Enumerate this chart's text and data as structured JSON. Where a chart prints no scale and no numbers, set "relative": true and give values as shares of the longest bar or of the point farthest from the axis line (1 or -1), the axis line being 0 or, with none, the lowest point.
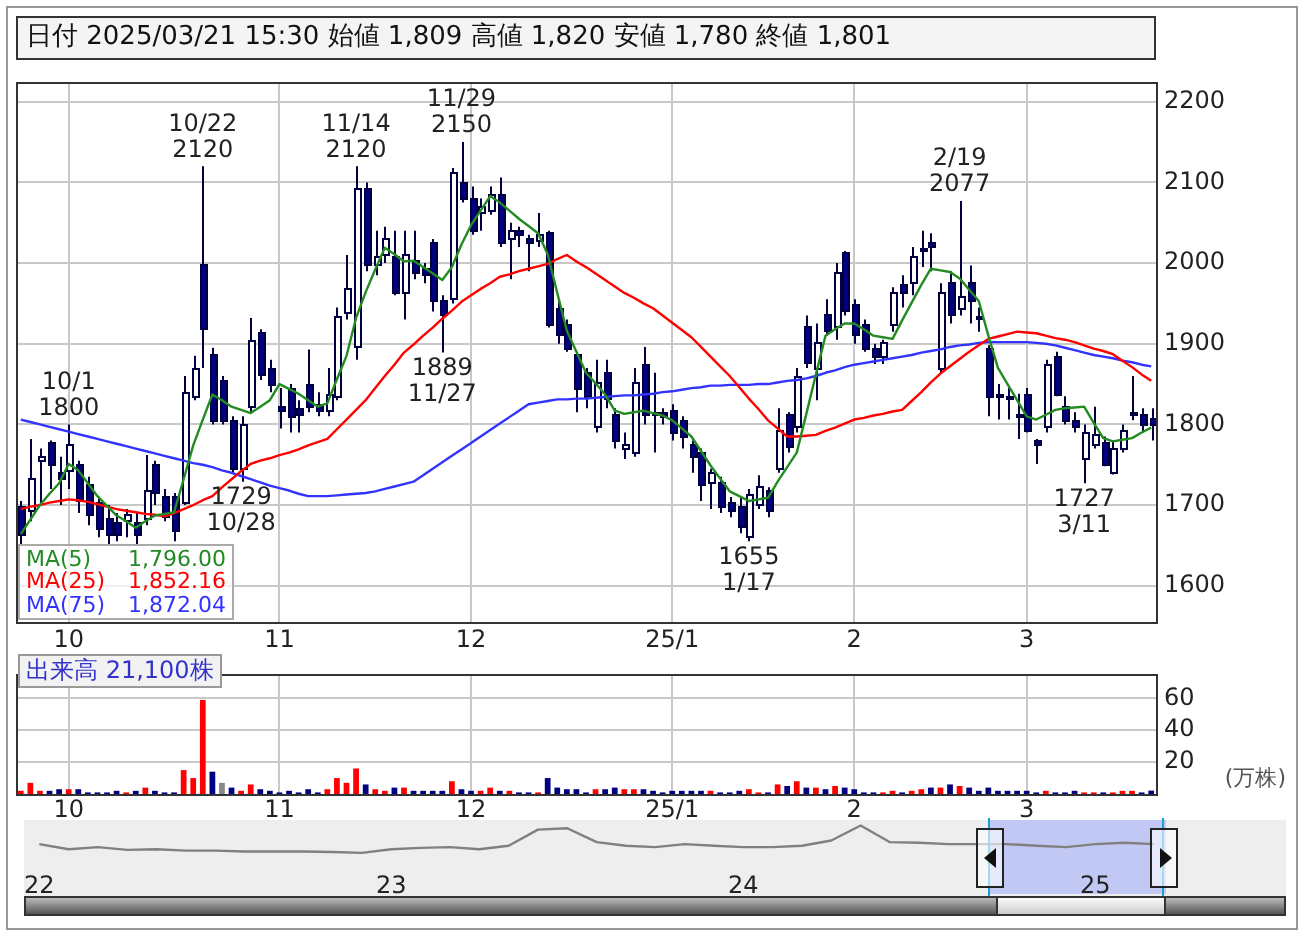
{
  "chart_data": [
    {
      "type": "candlestick",
      "title": "日付 2025/03/21 15:30 始値 1,809 高値 1,820 安値 1,780 終値 1,801",
      "categories": [
        null,
        null,
        null,
        null,
        null,
        "10",
        null,
        null,
        null,
        null,
        null,
        null,
        null,
        null,
        null,
        null,
        null,
        null,
        null,
        null,
        null,
        null,
        null,
        null,
        null,
        null,
        null,
        "11",
        null,
        null,
        null,
        null,
        null,
        null,
        null,
        null,
        null,
        null,
        null,
        null,
        null,
        null,
        null,
        null,
        null,
        null,
        null,
        "12",
        null,
        null,
        null,
        null,
        null,
        null,
        null,
        null,
        null,
        null,
        null,
        null,
        null,
        null,
        null,
        null,
        null,
        null,
        null,
        null,
        "25/1",
        null,
        null,
        null,
        null,
        null,
        null,
        null,
        null,
        null,
        null,
        null,
        null,
        null,
        null,
        null,
        null,
        null,
        null,
        "2",
        null,
        null,
        null,
        null,
        null,
        null,
        null,
        null,
        null,
        null,
        null,
        null,
        null,
        null,
        null,
        null,
        null,
        "3",
        null,
        null,
        null,
        null,
        null,
        null,
        null,
        null,
        null,
        null,
        null,
        null,
        null
      ],
      "ohlc": [
        [
          1700,
          1705,
          1650,
          1665
        ],
        [
          1694,
          1782,
          1680,
          1733
        ],
        [
          1755,
          1770,
          1700,
          1760
        ],
        [
          1778,
          1780,
          1720,
          1750
        ],
        [
          1740,
          1760,
          1700,
          1733
        ],
        [
          1743,
          1800,
          1720,
          1776
        ],
        [
          1750,
          1755,
          1690,
          1707
        ],
        [
          1727,
          1735,
          1675,
          1690
        ],
        [
          1703,
          1710,
          1660,
          1672
        ],
        [
          1685,
          1700,
          1650,
          1665
        ],
        [
          1680,
          1690,
          1655,
          1664
        ],
        [
          1682,
          1695,
          1660,
          1690
        ],
        [
          1680,
          1690,
          1650,
          1665
        ],
        [
          1685,
          1762,
          1675,
          1719
        ],
        [
          1752,
          1755,
          1700,
          1715
        ],
        [
          1711,
          1720,
          1680,
          1687
        ],
        [
          1711,
          1715,
          1655,
          1668
        ],
        [
          1703,
          1860,
          1700,
          1839
        ],
        [
          1834,
          1885,
          1830,
          1871
        ],
        [
          2000,
          2120,
          1870,
          1920
        ],
        [
          1887,
          1895,
          1800,
          1805
        ],
        [
          1855,
          1860,
          1800,
          1805
        ],
        [
          1805,
          1810,
          1740,
          1745
        ],
        [
          1745,
          1810,
          1729,
          1800
        ],
        [
          1822,
          1932,
          1815,
          1905
        ],
        [
          1914,
          1918,
          1855,
          1863
        ],
        [
          1870,
          1880,
          1840,
          1850
        ],
        [
          1822,
          1845,
          1795,
          1818
        ],
        [
          1845,
          1850,
          1790,
          1810
        ],
        [
          1820,
          1830,
          1790,
          1812
        ],
        [
          1850,
          1893,
          1815,
          1822
        ],
        [
          1825,
          1840,
          1810,
          1818
        ],
        [
          1818,
          1870,
          1810,
          1837
        ],
        [
          1834,
          1945,
          1830,
          1934
        ],
        [
          1940,
          2010,
          1930,
          1968
        ],
        [
          1897,
          2120,
          1880,
          2092
        ],
        [
          2092,
          2100,
          1990,
          2000
        ],
        [
          2000,
          2040,
          1985,
          2010
        ],
        [
          2011,
          2045,
          2000,
          2030
        ],
        [
          2008,
          2040,
          1960,
          1964
        ],
        [
          1963,
          2040,
          1930,
          2011
        ],
        [
          2003,
          2040,
          1980,
          1990
        ],
        [
          1995,
          2000,
          1975,
          1987
        ],
        [
          2025,
          2030,
          1940,
          1955
        ],
        [
          1955,
          1960,
          1889,
          1936
        ],
        [
          1956,
          2118,
          1950,
          2113
        ],
        [
          2100,
          2150,
          2075,
          2081
        ],
        [
          2080,
          2095,
          2035,
          2040
        ],
        [
          2063,
          2080,
          2040,
          2070
        ],
        [
          2067,
          2095,
          2060,
          2086
        ],
        [
          2086,
          2106,
          2020,
          2027
        ],
        [
          2031,
          2050,
          1980,
          2041
        ],
        [
          2041,
          2045,
          2020,
          2036
        ],
        [
          2030,
          2035,
          1990,
          2027
        ],
        [
          2029,
          2062,
          2020,
          2036
        ],
        [
          2039,
          2040,
          1920,
          1924
        ],
        [
          1944,
          1955,
          1900,
          1912
        ],
        [
          1924,
          1930,
          1890,
          1895
        ],
        [
          1888,
          1890,
          1815,
          1844
        ],
        [
          1864,
          1870,
          1820,
          1836
        ],
        [
          1797,
          1880,
          1790,
          1852
        ],
        [
          1864,
          1880,
          1820,
          1833
        ],
        [
          1813,
          1820,
          1770,
          1781
        ],
        [
          1770,
          1790,
          1757,
          1775
        ],
        [
          1765,
          1870,
          1760,
          1852
        ],
        [
          1876,
          1896,
          1800,
          1813
        ],
        [
          1815,
          1864,
          1765,
          1812
        ],
        [
          1815,
          1820,
          1800,
          1810
        ],
        [
          1817,
          1825,
          1780,
          1790
        ],
        [
          1805,
          1810,
          1770,
          1785
        ],
        [
          1775,
          1780,
          1740,
          1762
        ],
        [
          1765,
          1770,
          1705,
          1725
        ],
        [
          1728,
          1745,
          1695,
          1740
        ],
        [
          1729,
          1735,
          1690,
          1698
        ],
        [
          1705,
          1710,
          1685,
          1695
        ],
        [
          1700,
          1710,
          1665,
          1674
        ],
        [
          1661,
          1720,
          1655,
          1713
        ],
        [
          1702,
          1737,
          1695,
          1724
        ],
        [
          1718,
          1722,
          1685,
          1695
        ],
        [
          1745,
          1820,
          1740,
          1793
        ],
        [
          1813,
          1815,
          1765,
          1773
        ],
        [
          1797,
          1870,
          1790,
          1860
        ],
        [
          1921,
          1935,
          1870,
          1878
        ],
        [
          1870,
          1925,
          1830,
          1902
        ],
        [
          1937,
          1955,
          1910,
          1917
        ],
        [
          1921,
          2000,
          1905,
          1989
        ],
        [
          2013,
          2015,
          1935,
          1941
        ],
        [
          1949,
          1955,
          1900,
          1913
        ],
        [
          1925,
          1930,
          1890,
          1894
        ],
        [
          1894,
          1900,
          1875,
          1884
        ],
        [
          1884,
          1905,
          1875,
          1902
        ],
        [
          1925,
          1970,
          1915,
          1965
        ],
        [
          1973,
          1985,
          1945,
          1965
        ],
        [
          1977,
          2020,
          1960,
          2009
        ],
        [
          2015,
          2040,
          1995,
          2019
        ],
        [
          2025,
          2037,
          1990,
          2021
        ],
        [
          1870,
          1975,
          1865,
          1965
        ],
        [
          1977,
          1990,
          1925,
          1937
        ],
        [
          1945,
          2077,
          1935,
          1958
        ],
        [
          1977,
          1997,
          1925,
          1953
        ],
        [
          1935,
          1945,
          1915,
          1932
        ],
        [
          1894,
          1898,
          1810,
          1834
        ],
        [
          1838,
          1850,
          1806,
          1834
        ],
        [
          1836,
          1845,
          1806,
          1833
        ],
        [
          1812,
          1838,
          1782,
          1810
        ],
        [
          1838,
          1845,
          1790,
          1794
        ],
        [
          1780,
          1782,
          1751,
          1776
        ],
        [
          1798,
          1880,
          1790,
          1874
        ],
        [
          1886,
          1890,
          1835,
          1838
        ],
        [
          1822,
          1835,
          1800,
          1806
        ],
        [
          1806,
          1815,
          1790,
          1798
        ],
        [
          1759,
          1800,
          1727,
          1790
        ],
        [
          1776,
          1822,
          1770,
          1787
        ],
        [
          1779,
          1785,
          1748,
          1751
        ],
        [
          1741,
          1780,
          1738,
          1771
        ],
        [
          1771,
          1800,
          1765,
          1794
        ],
        [
          1812,
          1860,
          1805,
          1815
        ],
        [
          1814,
          1820,
          1790,
          1800
        ],
        [
          1809,
          1820,
          1780,
          1801
        ]
      ],
      "colors": [
        "#000080",
        "#ffffff",
        "#ffffff",
        "#000080",
        "#000080",
        "#ffffff",
        "#000080",
        "#000080",
        "#000080",
        "#000080",
        "#000080",
        "#ffffff",
        "#000080",
        "#ffffff",
        "#000080",
        "#000080",
        "#000080",
        "#ffffff",
        "#ffffff",
        "#000080",
        "#000080",
        "#000080",
        "#000080",
        "#ffffff",
        "#ffffff",
        "#000080",
        "#000080",
        "#000080",
        "#000080",
        "#000080",
        "#000080",
        "#000080",
        "#ffffff",
        "#ffffff",
        "#ffffff",
        "#ffffff",
        "#000080",
        "#ffffff",
        "#ffffff",
        "#000080",
        "#ffffff",
        "#000080",
        "#000080",
        "#000080",
        "#000080",
        "#ffffff",
        "#000080",
        "#000080",
        "#ffffff",
        "#ffffff",
        "#000080",
        "#ffffff",
        "#000080",
        "#000080",
        "#ffffff",
        "#000080",
        "#000080",
        "#000080",
        "#000080",
        "#000080",
        "#ffffff",
        "#000080",
        "#000080",
        "#ffffff",
        "#ffffff",
        "#000080",
        "#000080",
        "#000080",
        "#000080",
        "#000080",
        "#000080",
        "#000080",
        "#ffffff",
        "#000080",
        "#000080",
        "#000080",
        "#ffffff",
        "#ffffff",
        "#000080",
        "#ffffff",
        "#000080",
        "#ffffff",
        "#000080",
        "#ffffff",
        "#000080",
        "#ffffff",
        "#000080",
        "#000080",
        "#000080",
        "#000080",
        "#ffffff",
        "#ffffff",
        "#000080",
        "#ffffff",
        "#ffffff",
        "#000080",
        "#ffffff",
        "#000080",
        "#ffffff",
        "#000080",
        "#000080",
        "#000080",
        "#000080",
        "#000080",
        "#000080",
        "#000080",
        "#000080",
        "#ffffff",
        "#000080",
        "#000080",
        "#000080",
        "#ffffff",
        "#ffffff",
        "#000080",
        "#ffffff",
        "#ffffff",
        "#ffffff",
        "#000080",
        "#000080"
      ],
      "series": [
        {
          "name": "MA(5)",
          "type": "line",
          "color": "#228b22",
          "values": [
            1664,
            1682,
            1700,
            1714,
            1727,
            1751,
            1743,
            1727,
            1711,
            1699,
            1687,
            1680,
            1672,
            1680,
            1687,
            1689,
            1691,
            1732,
            1774,
            1806,
            1837,
            1830,
            1822,
            1818,
            1814,
            1822,
            1830,
            1850,
            1844,
            1838,
            1830,
            1822,
            1826,
            1856,
            1885,
            1932,
            1964,
            1992,
            2019,
            2011,
            2002,
            2003,
            1995,
            1987,
            1979,
            1995,
            2023,
            2047,
            2065,
            2083,
            2075,
            2065,
            2055,
            2046,
            2037,
            2011,
            1963,
            1916,
            1890,
            1864,
            1851,
            1837,
            1817,
            1813,
            1815,
            1817,
            1814,
            1811,
            1805,
            1795,
            1785,
            1767,
            1749,
            1733,
            1717,
            1711,
            1705,
            1707,
            1709,
            1729,
            1747,
            1765,
            1813,
            1862,
            1910,
            1918,
            1925,
            1925,
            1918,
            1910,
            1908,
            1906,
            1929,
            1951,
            1973,
            1993,
            1991,
            1989,
            1981,
            1967,
            1953,
            1910,
            1870,
            1850,
            1830,
            1810,
            1806,
            1812,
            1818,
            1820,
            1821,
            1822,
            1802,
            1783,
            1779,
            1781,
            1783,
            1790,
            1796
          ]
        },
        {
          "name": "MA(25)",
          "type": "line",
          "color": "#ff0000",
          "values": [
            1695,
            1698,
            1700,
            1703,
            1705,
            1707,
            1706,
            1704,
            1701,
            1698,
            1695,
            1693,
            1691,
            1689,
            1688,
            1686,
            1690,
            1695,
            1700,
            1706,
            1711,
            1722,
            1732,
            1742,
            1751,
            1755,
            1758,
            1762,
            1765,
            1769,
            1774,
            1778,
            1782,
            1794,
            1806,
            1818,
            1830,
            1845,
            1860,
            1874,
            1889,
            1899,
            1910,
            1920,
            1931,
            1941,
            1952,
            1960,
            1968,
            1975,
            1983,
            1986,
            1990,
            1993,
            1996,
            1999,
            2005,
            2010,
            2002,
            1995,
            1987,
            1979,
            1971,
            1963,
            1957,
            1950,
            1944,
            1935,
            1926,
            1917,
            1908,
            1896,
            1884,
            1872,
            1860,
            1846,
            1832,
            1819,
            1805,
            1795,
            1785,
            1785,
            1786,
            1787,
            1792,
            1796,
            1801,
            1806,
            1808,
            1811,
            1813,
            1816,
            1818,
            1829,
            1840,
            1852,
            1863,
            1872,
            1881,
            1890,
            1898,
            1906,
            1909,
            1912,
            1915,
            1914,
            1913,
            1910,
            1907,
            1905,
            1902,
            1898,
            1894,
            1891,
            1887,
            1879,
            1871,
            1862,
            1854
          ]
        },
        {
          "name": "MA(75)",
          "type": "line",
          "color": "#3333ff",
          "values": [
            1806,
            1803,
            1800,
            1797,
            1794,
            1791,
            1788,
            1785,
            1782,
            1779,
            1776,
            1773,
            1770,
            1767,
            1764,
            1761,
            1758,
            1755,
            1752,
            1750,
            1747,
            1743,
            1740,
            1736,
            1732,
            1728,
            1724,
            1721,
            1718,
            1714,
            1711,
            1711,
            1711,
            1712,
            1713,
            1714,
            1715,
            1717,
            1720,
            1723,
            1726,
            1729,
            1737,
            1745,
            1753,
            1761,
            1769,
            1777,
            1785,
            1793,
            1801,
            1809,
            1817,
            1825,
            1827,
            1829,
            1831,
            1831,
            1832,
            1832,
            1833,
            1834,
            1835,
            1836,
            1836,
            1837,
            1838,
            1840,
            1841,
            1843,
            1845,
            1846,
            1848,
            1848,
            1849,
            1849,
            1849,
            1850,
            1850,
            1852,
            1854,
            1855,
            1857,
            1860,
            1864,
            1867,
            1871,
            1874,
            1876,
            1878,
            1880,
            1882,
            1884,
            1886,
            1889,
            1891,
            1893,
            1896,
            1898,
            1899,
            1901,
            1902,
            1902,
            1902,
            1902,
            1902,
            1901,
            1900,
            1898,
            1895,
            1892,
            1889,
            1886,
            1884,
            1882,
            1879,
            1877,
            1874,
            1872
          ]
        }
      ],
      "ylim": [
        1555,
        2224
      ],
      "yticks": [
        1600,
        1700,
        1800,
        1900,
        2000,
        2100,
        2200
      ],
      "grid": true,
      "legend": "bottom left",
      "annotations": [
        "1,796.00",
        "1,852.16",
        "1,872.04",
        {
          "text": "10/1 1800",
          "y": 1800
        },
        {
          "text": "10/22 2120",
          "y": 2120
        },
        {
          "text": "1729 10/28",
          "y": 1729
        },
        {
          "text": "11/14 2120",
          "y": 2120
        },
        {
          "text": "1889 11/27",
          "y": 1889
        },
        {
          "text": "11/29 2150",
          "y": 2150
        },
        {
          "text": "1655 1/17",
          "y": 1655
        },
        {
          "text": "2/19 2077",
          "y": 2077
        },
        {
          "text": "1727 3/11",
          "y": 1727
        }
      ]
    },
    {
      "type": "bar",
      "title": "出来高 21,100株",
      "ylabel": "(万株)",
      "categories": [
        null,
        null,
        null,
        null,
        null,
        "10",
        null,
        null,
        null,
        null,
        null,
        null,
        null,
        null,
        null,
        null,
        null,
        null,
        null,
        null,
        null,
        null,
        null,
        null,
        null,
        null,
        null,
        "11",
        null,
        null,
        null,
        null,
        null,
        null,
        null,
        null,
        null,
        null,
        null,
        null,
        null,
        null,
        null,
        null,
        null,
        null,
        null,
        "12",
        null,
        null,
        null,
        null,
        null,
        null,
        null,
        null,
        null,
        null,
        null,
        null,
        null,
        null,
        null,
        null,
        null,
        null,
        null,
        null,
        "25/1",
        null,
        null,
        null,
        null,
        null,
        null,
        null,
        null,
        null,
        null,
        null,
        null,
        null,
        null,
        null,
        null,
        null,
        null,
        "2",
        null,
        null,
        null,
        null,
        null,
        null,
        null,
        null,
        null,
        null,
        null,
        null,
        null,
        null,
        null,
        null,
        null,
        "3",
        null,
        null,
        null,
        null,
        null,
        null,
        null,
        null,
        null,
        null,
        null,
        null,
        null
      ],
      "values": [
        2,
        7,
        2,
        2,
        3,
        3,
        3,
        1,
        1,
        1,
        2,
        1,
        2,
        4,
        2,
        1,
        1,
        15,
        10,
        59,
        14,
        7,
        4,
        2,
        6,
        3,
        2,
        1,
        2,
        1,
        3,
        1,
        3,
        10,
        7,
        16,
        6,
        3,
        2,
        4,
        4,
        2,
        2,
        2,
        2,
        8,
        3,
        2,
        2,
        4,
        2,
        2,
        1,
        1,
        1,
        10,
        4,
        3,
        3,
        1,
        3,
        3,
        4,
        3,
        3,
        3,
        2,
        1,
        2,
        2,
        2,
        2,
        2,
        1,
        1,
        2,
        3,
        1,
        1,
        6,
        5,
        8,
        4,
        4,
        3,
        5,
        4,
        3,
        1,
        1,
        1,
        2,
        1,
        2,
        3,
        4,
        4,
        6,
        5,
        4,
        2,
        4,
        2,
        2,
        2,
        2,
        1,
        2,
        1,
        1,
        2,
        1,
        1,
        1,
        1,
        2,
        2,
        1,
        2.11
      ],
      "colors": [
        "#ff0000",
        "#ff0000",
        "#ff0000",
        "#000080",
        "#000080",
        "#ff0000",
        "#000080",
        "#000080",
        "#000080",
        "#000080",
        "#000080",
        "#ff0000",
        "#000080",
        "#ff0000",
        "#000080",
        "#000080",
        "#000080",
        "#ff0000",
        "#ff0000",
        "#ff0000",
        "#000080",
        "#888888",
        "#000080",
        "#ff0000",
        "#ff0000",
        "#000080",
        "#000080",
        "#000080",
        "#000080",
        "#000080",
        "#000080",
        "#000080",
        "#ff0000",
        "#ff0000",
        "#ff0000",
        "#ff0000",
        "#000080",
        "#ff0000",
        "#ff0000",
        "#000080",
        "#ff0000",
        "#000080",
        "#000080",
        "#000080",
        "#000080",
        "#ff0000",
        "#000080",
        "#000080",
        "#ff0000",
        "#ff0000",
        "#000080",
        "#ff0000",
        "#000080",
        "#000080",
        "#ff0000",
        "#000080",
        "#000080",
        "#000080",
        "#000080",
        "#000080",
        "#ff0000",
        "#000080",
        "#000080",
        "#ff0000",
        "#ff0000",
        "#000080",
        "#000080",
        "#000080",
        "#000080",
        "#000080",
        "#000080",
        "#000080",
        "#ff0000",
        "#000080",
        "#000080",
        "#000080",
        "#ff0000",
        "#ff0000",
        "#000080",
        "#ff0000",
        "#000080",
        "#ff0000",
        "#000080",
        "#ff0000",
        "#000080",
        "#ff0000",
        "#000080",
        "#000080",
        "#000080",
        "#000080",
        "#ff0000",
        "#ff0000",
        "#000080",
        "#ff0000",
        "#ff0000",
        "#000080",
        "#ff0000",
        "#000080",
        "#ff0000",
        "#000080",
        "#000080",
        "#000080",
        "#000080",
        "#000080",
        "#000080",
        "#000080",
        "#000080",
        "#ff0000",
        "#000080",
        "#000080",
        "#000080",
        "#ff0000",
        "#ff0000",
        "#000080",
        "#ff0000",
        "#ff0000",
        "#ff0000",
        "#000080",
        "#000080"
      ],
      "ylim": [
        0,
        75
      ],
      "yticks": [
        20,
        40,
        60
      ],
      "grid": true
    },
    {
      "type": "line",
      "relative": true,
      "color": "#808080",
      "categories": [
        "22",
        null,
        null,
        null,
        null,
        null,
        null,
        null,
        null,
        null,
        null,
        null,
        "23",
        null,
        null,
        null,
        null,
        null,
        null,
        null,
        null,
        null,
        null,
        null,
        "24",
        null,
        null,
        null,
        null,
        null,
        null,
        null,
        null,
        null,
        null,
        null,
        "25",
        null,
        null,
        null,
        null,
        null,
        null
      ],
      "values": [
        0.32,
        0.13,
        0.21,
        0.11,
        0.13,
        0.08,
        0.08,
        0.05,
        0.05,
        0.05,
        0.03,
        0,
        0.13,
        0.18,
        0.21,
        0.13,
        0.26,
        0.85,
        0.9,
        0.39,
        0.26,
        0.21,
        0.32,
        0.26,
        0.21,
        0.21,
        0.26,
        0.45,
        1,
        0.39,
        0.37,
        0.32,
        0.32,
        0.32,
        0.26,
        0.21,
        0.32,
        0.37,
        0.32,
        null,
        null,
        null,
        null
      ]
    }
  ]
}
